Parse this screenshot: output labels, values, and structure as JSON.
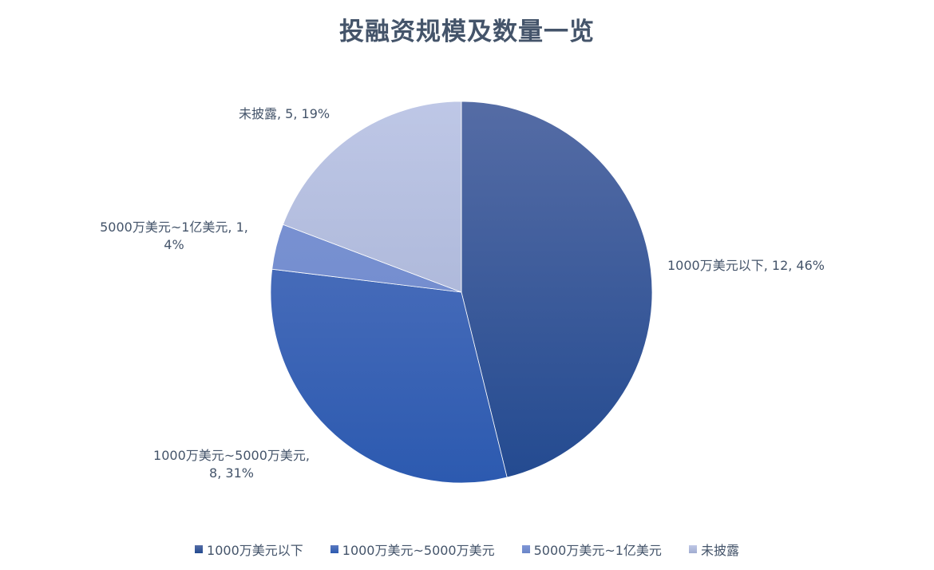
{
  "chart_data": {
    "type": "pie",
    "title": "投融资规模及数量一览",
    "categories": [
      "1000万美元以下",
      "1000万美元~5000万美元",
      "5000万美元~1亿美元",
      "未披露"
    ],
    "values": [
      12,
      8,
      1,
      5
    ],
    "percent_labels": [
      "46%",
      "31%",
      "4%",
      "19%"
    ],
    "data_labels": [
      "1000万美元以下, 12, 46%",
      "1000万美元~5000万美元, 8, 31%",
      "5000万美元~1亿美元, 1, 4%",
      "未披露, 5, 19%"
    ],
    "colors": [
      [
        "#556ca5",
        "#234a90"
      ],
      [
        "#5a78c0",
        "#2c5ab0"
      ],
      [
        "#7f96d6",
        "#6a86c8"
      ],
      [
        "#bec7e6",
        "#a0acd0"
      ]
    ],
    "legend_position": "bottom",
    "start_angle": "top, clockwise"
  }
}
